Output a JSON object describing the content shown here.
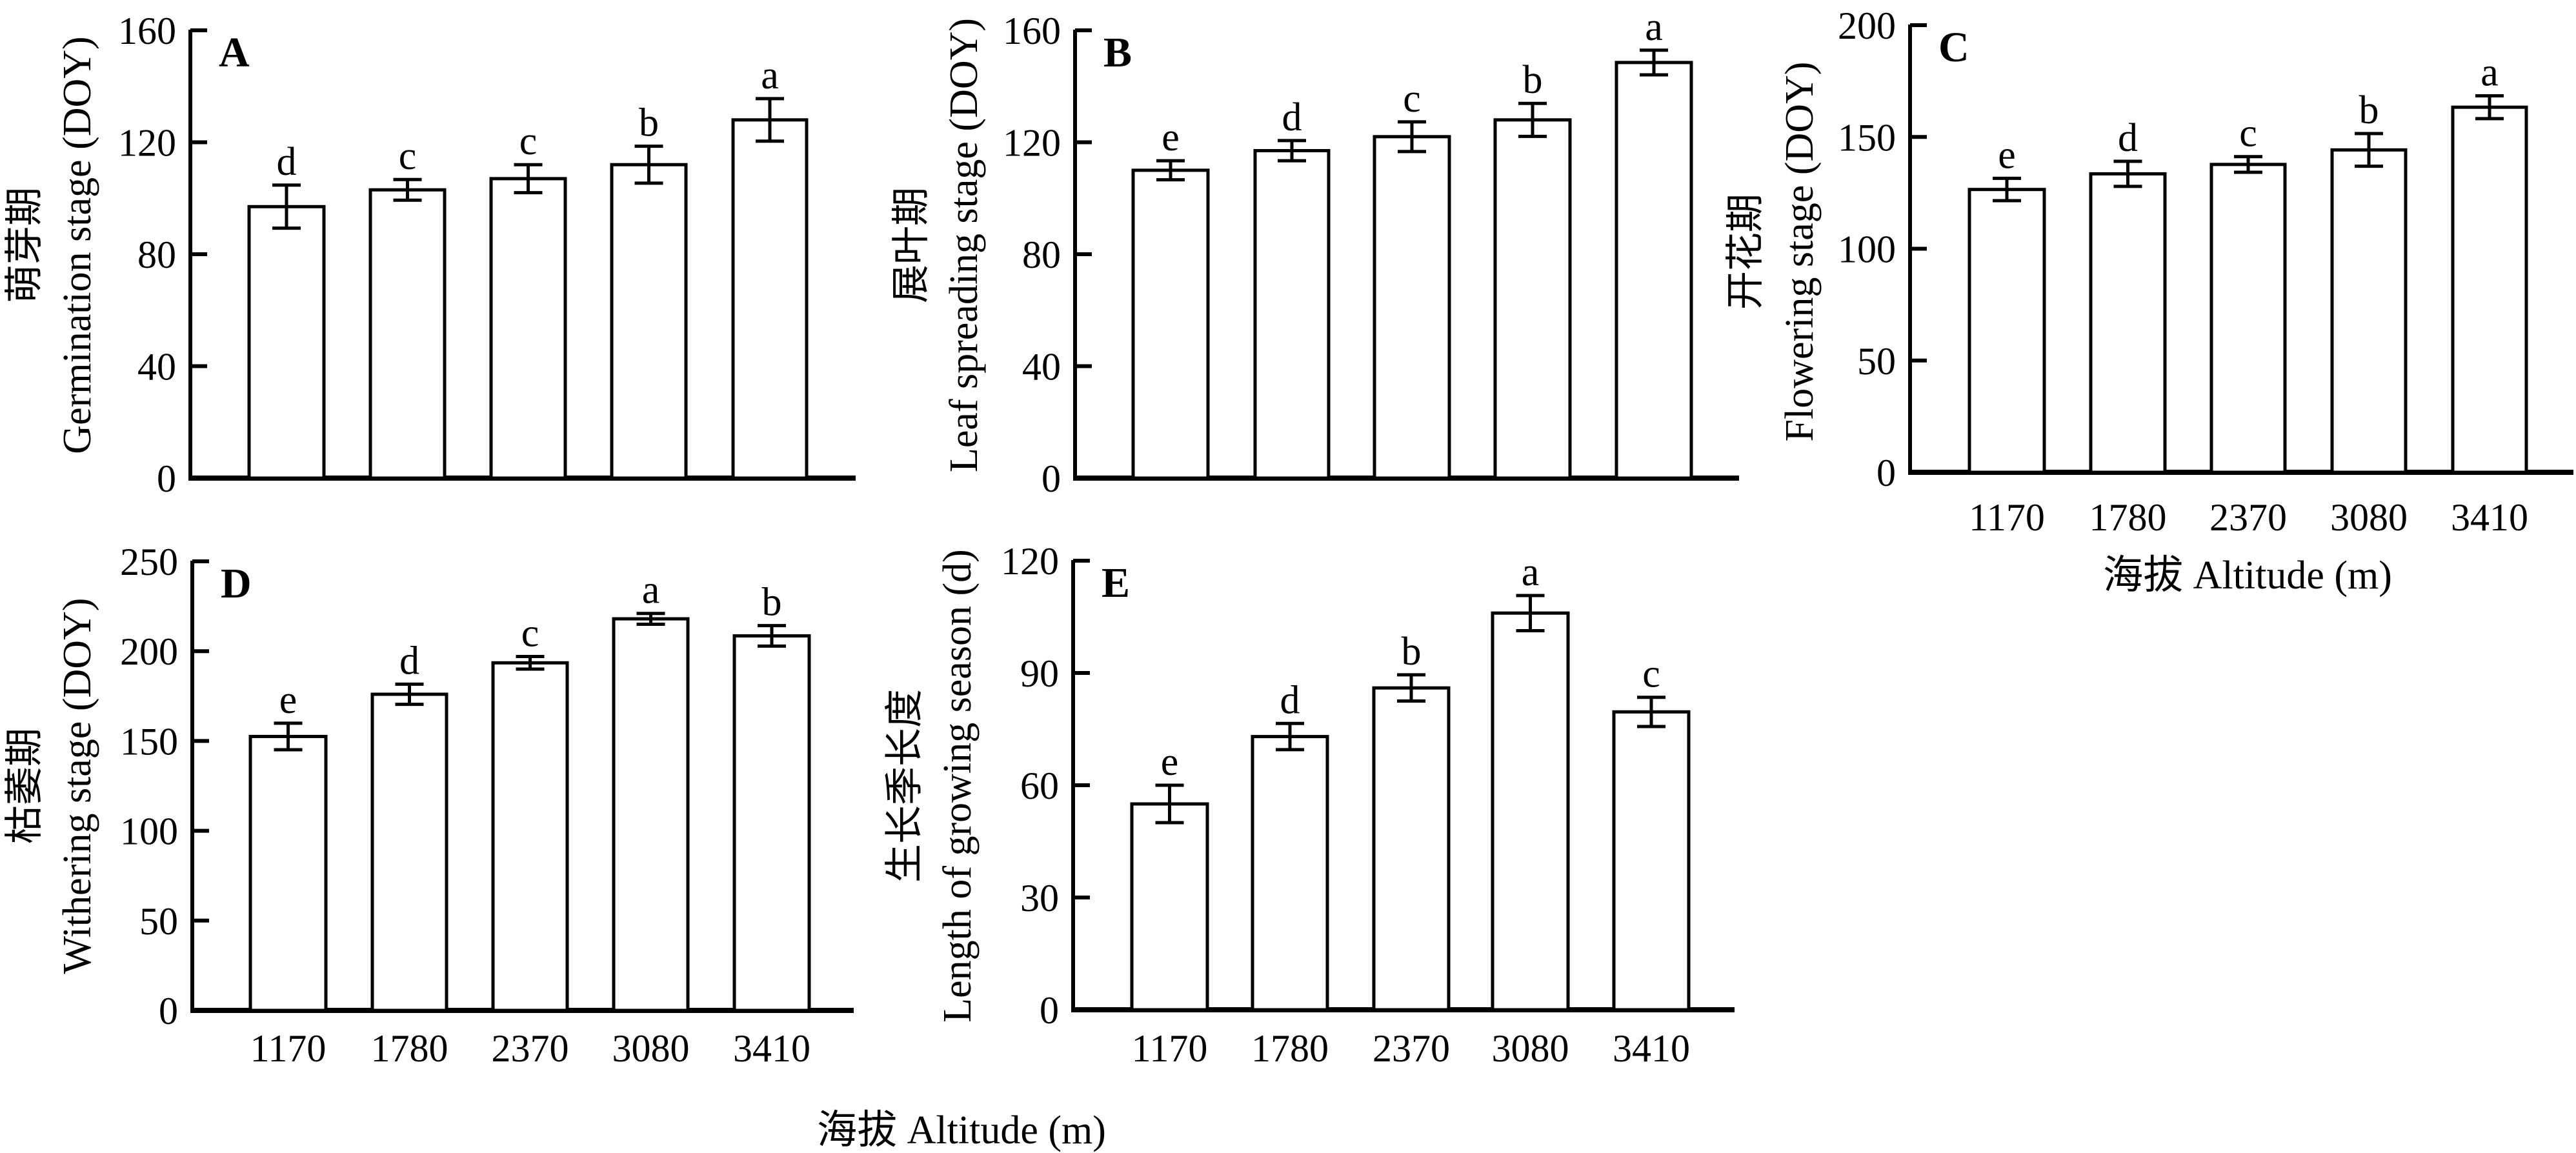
{
  "figure": {
    "shared_xlabel": "海拔 Altitude (m)",
    "colors": {
      "bar_fill": "#ffffff",
      "stroke": "#000000",
      "background": "#ffffff"
    }
  },
  "chart_data": [
    {
      "panel": "A",
      "type": "bar",
      "categories": [
        "1170",
        "1780",
        "2370",
        "3080",
        "3410"
      ],
      "values": [
        97,
        103,
        107,
        112,
        128
      ],
      "errors": [
        7.7,
        3.7,
        5,
        6.6,
        7.6
      ],
      "significance": [
        "d",
        "c",
        "c",
        "b",
        "a"
      ],
      "ylabel_cn": "萌芽期",
      "ylabel": "Germination stage (DOY)",
      "xlabel": "",
      "yticks": [
        "0",
        "40",
        "80",
        "120",
        "160"
      ],
      "ylim": [
        0,
        160
      ],
      "show_xticklabels": false,
      "grid": false
    },
    {
      "panel": "B",
      "type": "bar",
      "categories": [
        "1170",
        "1780",
        "2370",
        "3080",
        "3410"
      ],
      "values": [
        110,
        117,
        122,
        128,
        148.5
      ],
      "errors": [
        3.4,
        3.6,
        5.3,
        5.9,
        4.4
      ],
      "significance": [
        "e",
        "d",
        "c",
        "b",
        "a"
      ],
      "ylabel_cn": "展叶期",
      "ylabel": "Leaf spreading stage (DOY)",
      "xlabel": "",
      "yticks": [
        "0",
        "40",
        "80",
        "120",
        "160"
      ],
      "ylim": [
        0,
        160
      ],
      "show_xticklabels": false,
      "grid": false
    },
    {
      "panel": "C",
      "type": "bar",
      "categories": [
        "1170",
        "1780",
        "2370",
        "3080",
        "3410"
      ],
      "values": [
        126.5,
        133.5,
        137.7,
        144.2,
        163.3
      ],
      "errors": [
        5,
        5.6,
        3.5,
        7.3,
        5.1
      ],
      "significance": [
        "e",
        "d",
        "c",
        "b",
        "a"
      ],
      "ylabel_cn": "开花期",
      "ylabel": "Flowering stage (DOY)",
      "xlabel": "海拔 Altitude (m)",
      "yticks": [
        "0",
        "50",
        "100",
        "150",
        "200"
      ],
      "ylim": [
        0,
        200
      ],
      "show_xticklabels": true,
      "grid": false
    },
    {
      "panel": "D",
      "type": "bar",
      "categories": [
        "1170",
        "1780",
        "2370",
        "3080",
        "3410"
      ],
      "values": [
        152.5,
        176,
        193.5,
        218,
        208.5
      ],
      "errors": [
        7.4,
        5.6,
        3.5,
        3,
        5.7
      ],
      "significance": [
        "e",
        "d",
        "c",
        "a",
        "b"
      ],
      "ylabel_cn": "枯萎期",
      "ylabel": "Withering stage (DOY)",
      "xlabel": "",
      "yticks": [
        "0",
        "50",
        "100",
        "150",
        "200",
        "250"
      ],
      "ylim": [
        0,
        250
      ],
      "show_xticklabels": true,
      "grid": false
    },
    {
      "panel": "E",
      "type": "bar",
      "categories": [
        "1170",
        "1780",
        "2370",
        "3080",
        "3410"
      ],
      "values": [
        55,
        73,
        86,
        106,
        79.6
      ],
      "errors": [
        5,
        3.5,
        3.5,
        4.7,
        3.9
      ],
      "significance": [
        "e",
        "d",
        "b",
        "a",
        "c"
      ],
      "ylabel_cn": "生长季长度",
      "ylabel": "Length of growing season (d)",
      "xlabel": "",
      "yticks": [
        "0",
        "30",
        "60",
        "90",
        "120"
      ],
      "ylim": [
        0,
        120
      ],
      "show_xticklabels": true,
      "grid": false
    }
  ]
}
